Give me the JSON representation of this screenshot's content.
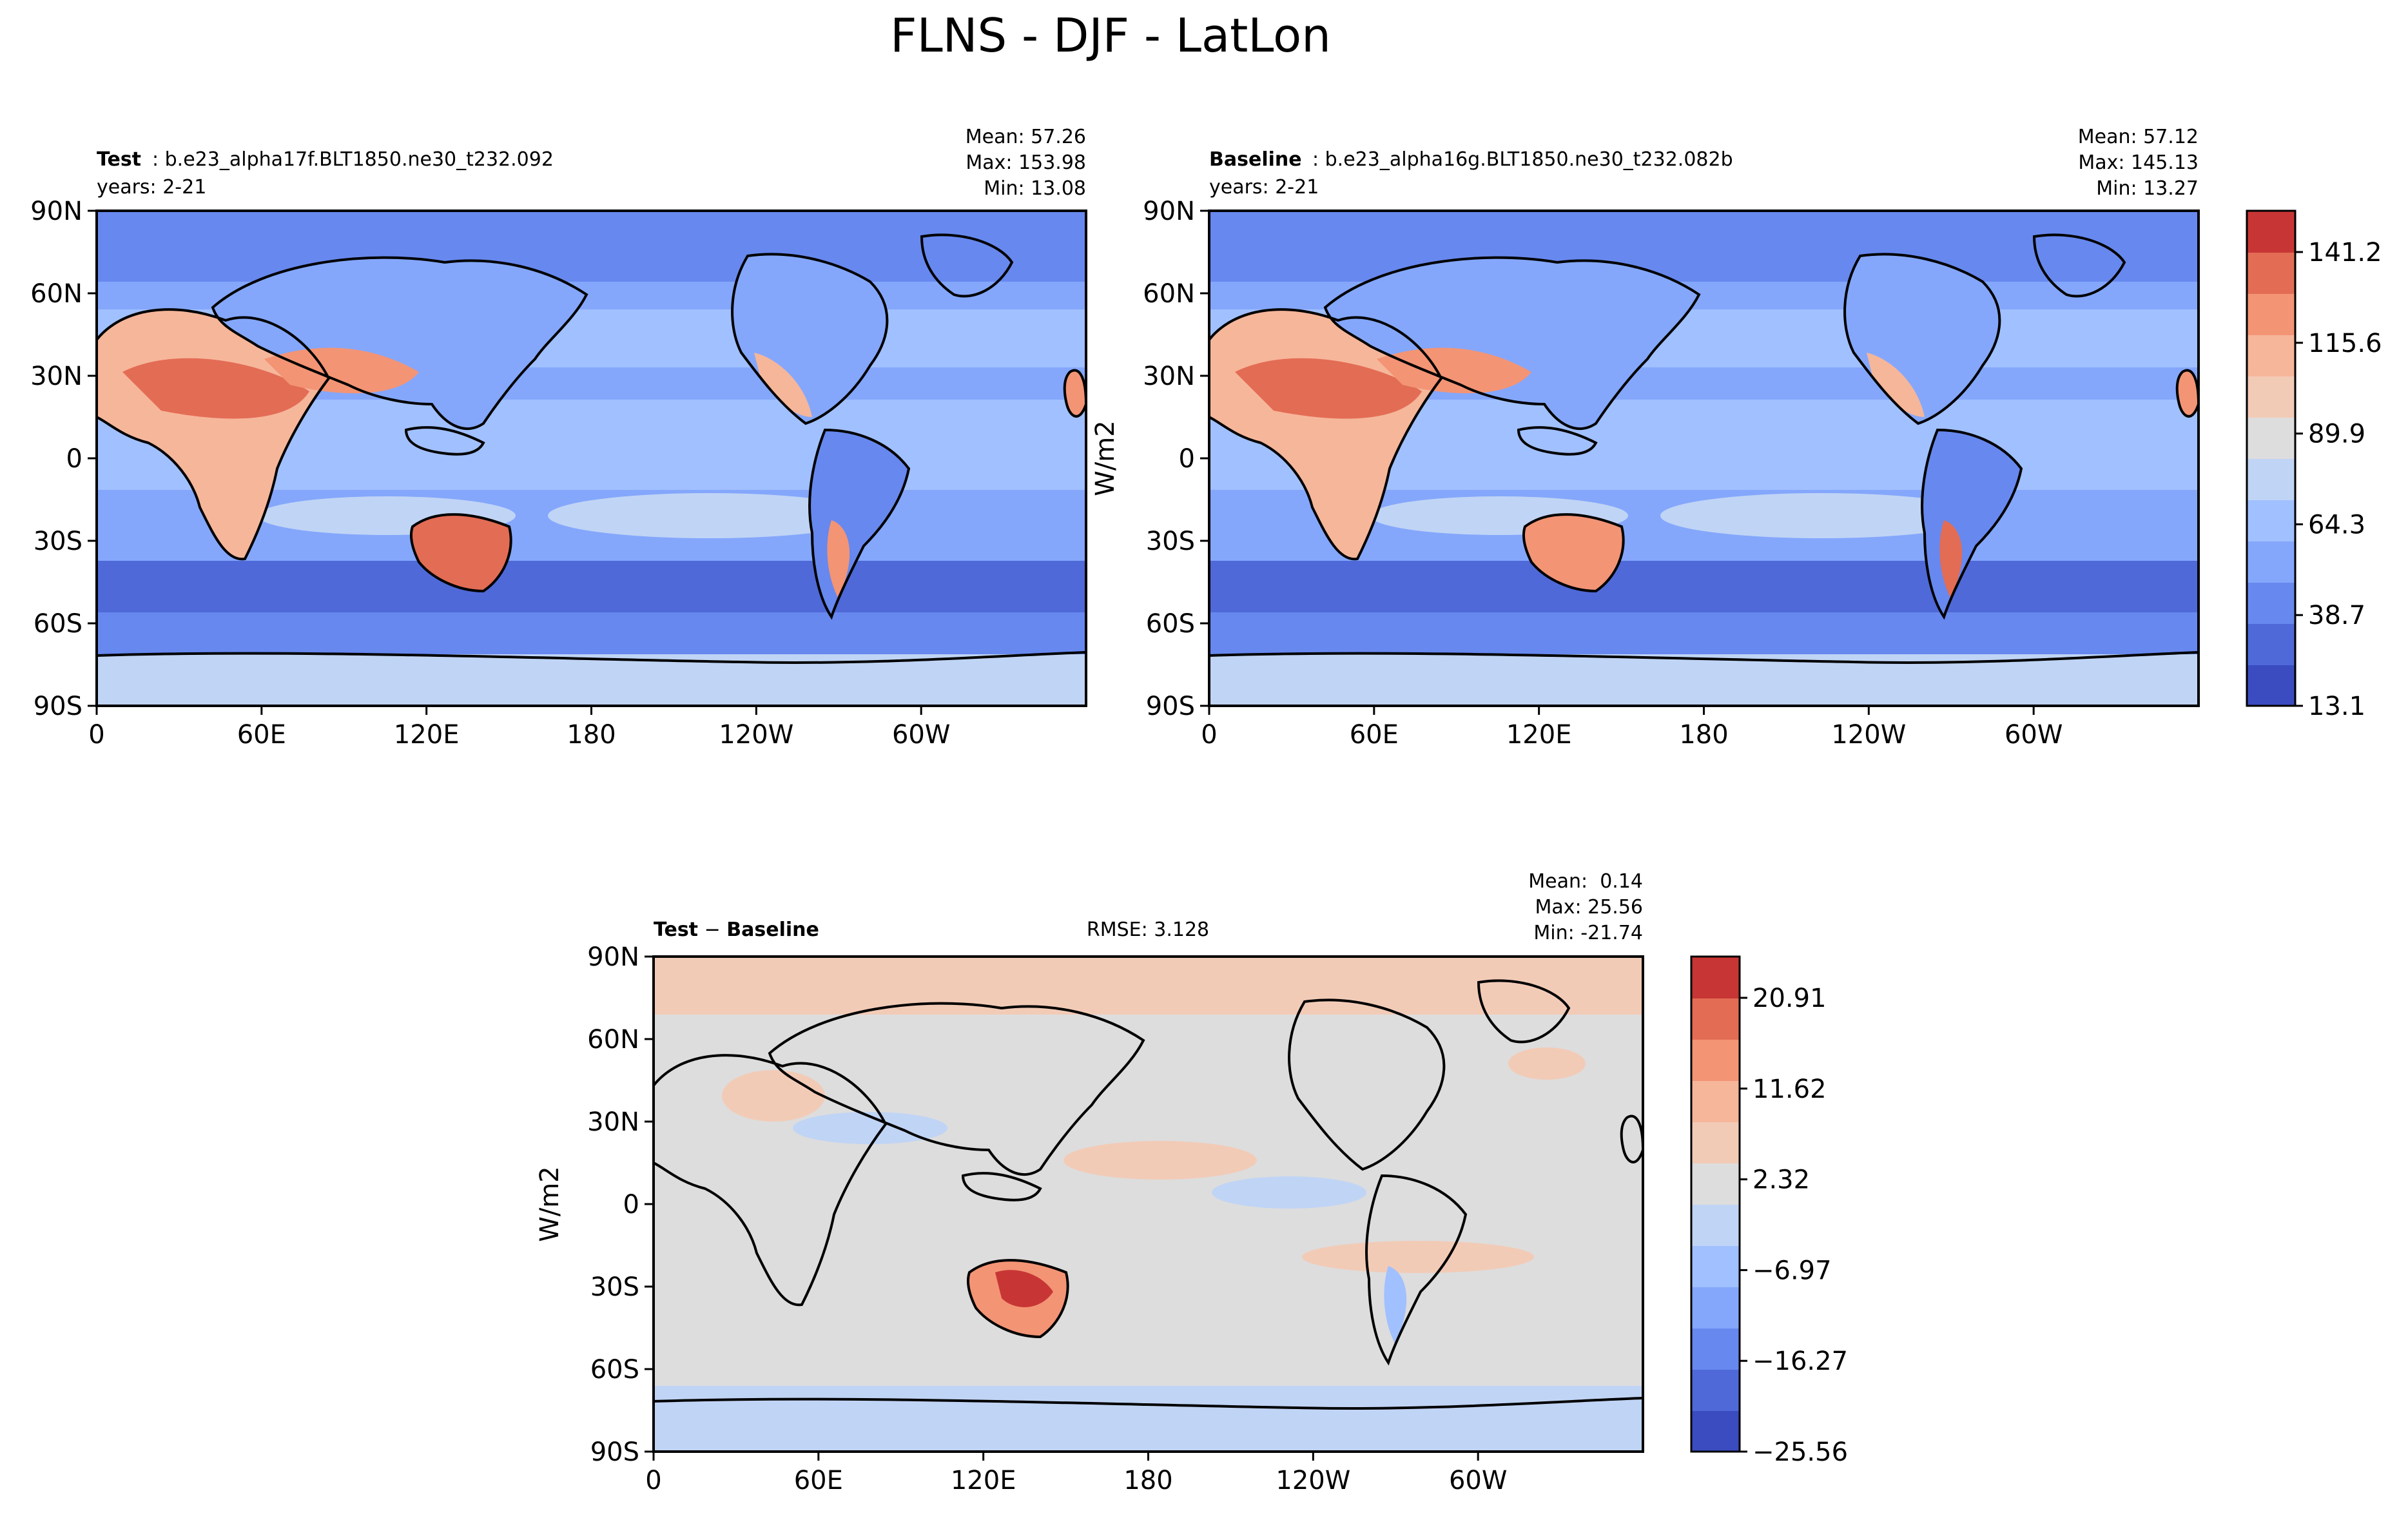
{
  "figure_title": "FLNS - DJF - LatLon",
  "colors": {
    "ocean_light": "#c1d4f4",
    "land_outline": "#000000",
    "cmap_low": [
      "#3b4cc0",
      "#4f69d8",
      "#6788ee",
      "#84a7fc",
      "#a1c0ff",
      "#c0d4f5"
    ],
    "cmap_mid": "#dddddd",
    "cmap_high": [
      "#f2cbb7",
      "#f6b69a",
      "#f39475",
      "#e36c55",
      "#c73635"
    ]
  },
  "chart_data": [
    {
      "type": "heatmap",
      "id": "test",
      "title_bold": "Test",
      "title_rest": ": b.e23_alpha17f.BLT1850.ne30_t232.092",
      "years": "years: 2-21",
      "mean": "Mean: 57.26",
      "max": "Max: 153.98",
      "min": "Min: 13.08",
      "ylabel": "",
      "lat_ticks": [
        "90N",
        "60N",
        "30N",
        "0",
        "30S",
        "60S",
        "90S"
      ],
      "lon_ticks": [
        "0",
        "60E",
        "120E",
        "180",
        "120W",
        "60W"
      ],
      "zlim": [
        13.1,
        153.98
      ]
    },
    {
      "type": "heatmap",
      "id": "baseline",
      "title_bold": "Baseline",
      "title_rest": ": b.e23_alpha16g.BLT1850.ne30_t232.082b",
      "years": "years: 2-21",
      "mean": "Mean: 57.12",
      "max": "Max: 145.13",
      "min": "Min: 13.27",
      "ylabel": "W/m2",
      "lat_ticks": [
        "90N",
        "60N",
        "30N",
        "0",
        "30S",
        "60S",
        "90S"
      ],
      "lon_ticks": [
        "0",
        "60E",
        "120E",
        "180",
        "120W",
        "60W"
      ],
      "zlim": [
        13.1,
        153.98
      ],
      "colorbar_ticks": [
        "141.2",
        "115.6",
        "89.9",
        "64.3",
        "38.7",
        "13.1"
      ]
    },
    {
      "type": "heatmap",
      "id": "diff",
      "title_a": "Test",
      "title_sep": " − ",
      "title_b": "Baseline",
      "rmse": "RMSE: 3.128",
      "mean": "Mean:  0.14",
      "max": "Max: 25.56",
      "min": "Min: -21.74",
      "ylabel": "W/m2",
      "lat_ticks": [
        "90N",
        "60N",
        "30N",
        "0",
        "30S",
        "60S",
        "90S"
      ],
      "lon_ticks": [
        "0",
        "60E",
        "120E",
        "180",
        "120W",
        "60W"
      ],
      "zlim": [
        -25.56,
        25.56
      ],
      "colorbar_ticks": [
        "20.91",
        "11.62",
        "2.32",
        "−6.97",
        "−16.27",
        "−25.56"
      ]
    }
  ]
}
